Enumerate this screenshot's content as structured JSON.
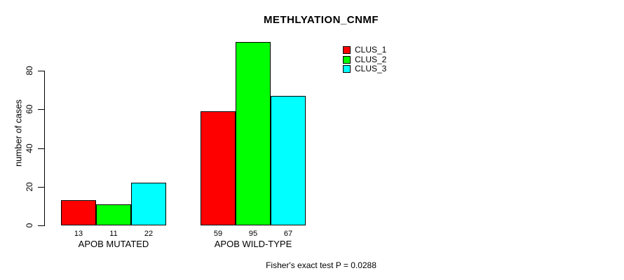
{
  "chart_data": {
    "type": "bar",
    "title": "METHLYATION_CNMF",
    "xlabel": "",
    "ylabel": "number of cases",
    "categories": [
      "APOB MUTATED",
      "APOB WILD-TYPE"
    ],
    "series": [
      {
        "name": "CLUS_1",
        "color": "#ff0000",
        "values": [
          13,
          59
        ]
      },
      {
        "name": "CLUS_2",
        "color": "#00ff00",
        "values": [
          11,
          95
        ]
      },
      {
        "name": "CLUS_3",
        "color": "#00ffff",
        "values": [
          22,
          67
        ]
      }
    ],
    "bar_value_labels": [
      [
        13,
        11,
        22
      ],
      [
        59,
        95,
        67
      ]
    ],
    "yticks": [
      0,
      20,
      40,
      60,
      80
    ],
    "ylim": [
      0,
      95
    ],
    "grid": false,
    "legend_position": "top-right",
    "bar_border_color": "#000000",
    "annotation": "Fisher's exact test P = 0.0288"
  }
}
